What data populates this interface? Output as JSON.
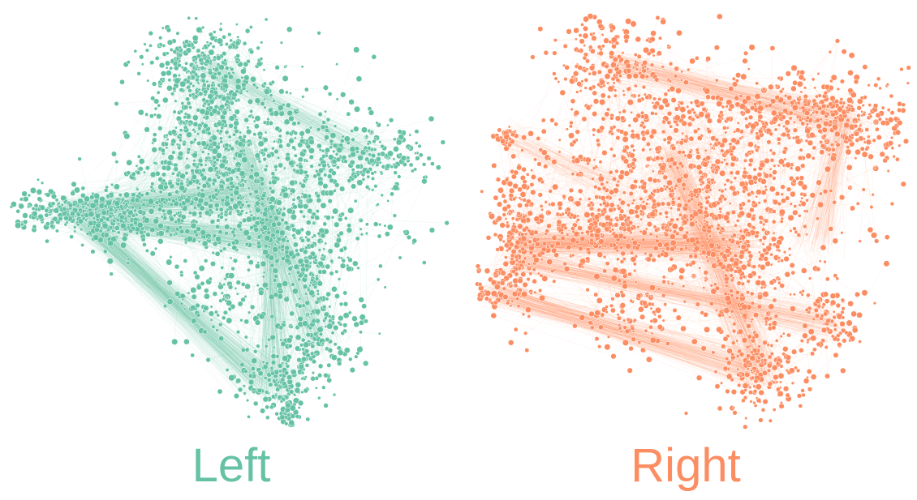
{
  "panels": [
    {
      "id": "left",
      "label": "Left",
      "color": "#66c2a5"
    },
    {
      "id": "right",
      "label": "Right",
      "color": "#fc8d62"
    }
  ]
}
